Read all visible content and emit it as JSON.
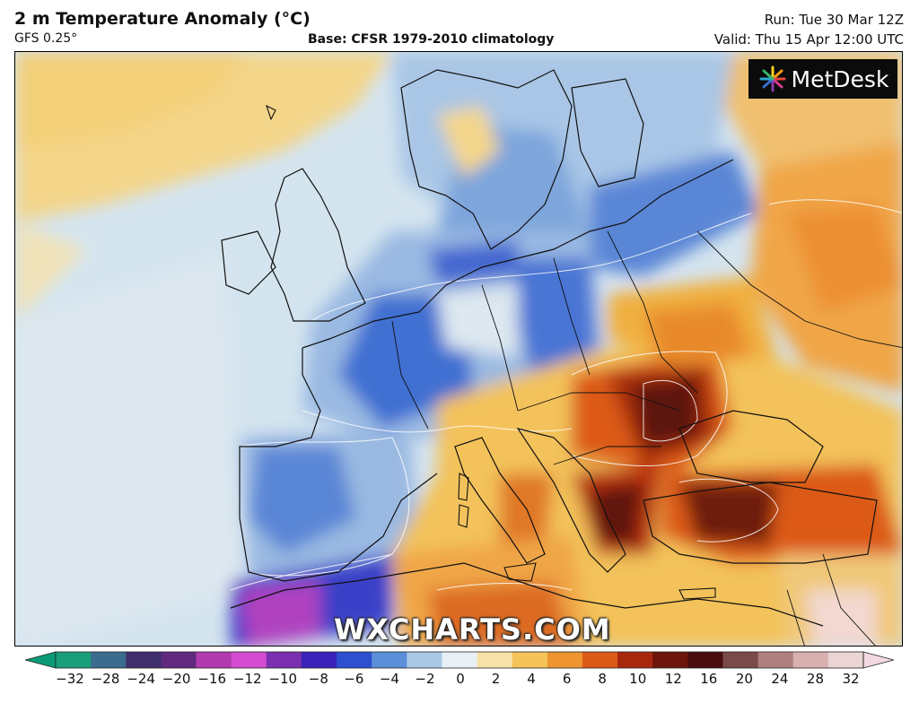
{
  "header": {
    "title": "2 m Temperature Anomaly (°C)",
    "model": "GFS 0.25°",
    "base": "Base: CFSR 1979-2010 climatology",
    "run": "Run: Tue 30 Mar 12Z",
    "valid": "Valid: Thu 15 Apr 12:00 UTC"
  },
  "logo": {
    "text": "MetDesk",
    "icon": "metdesk-logo-icon"
  },
  "watermark": "WXCHARTS.COM",
  "colorbar": {
    "ticks": [
      "−32",
      "−28",
      "−24",
      "−20",
      "−16",
      "−12",
      "−10",
      "−8",
      "−6",
      "−4",
      "−2",
      "0",
      "2",
      "4",
      "6",
      "8",
      "10",
      "12",
      "16",
      "20",
      "24",
      "28",
      "32"
    ],
    "colors": [
      "#1a9e7a",
      "#3b6b8e",
      "#3e2f6c",
      "#612a7e",
      "#b23bb0",
      "#d24bd0",
      "#7a2fb0",
      "#3a22b8",
      "#2e4fd0",
      "#5b8fd8",
      "#a9c8e6",
      "#e8f0f6",
      "#f6e2a8",
      "#f4c45a",
      "#ee9430",
      "#dc5a18",
      "#a8280e",
      "#6e150c",
      "#4a0e0e",
      "#7a4a4a",
      "#b08080",
      "#d8b0b0",
      "#ecd4d4"
    ],
    "left_arrow_color": "#0a9a78",
    "right_arrow_color": "#f2d8e0"
  },
  "map": {
    "ocean_color": "#d6e6f0",
    "cold_color": "#3a5fd0",
    "warm_color": "#f2a640",
    "hot_color": "#6e150c"
  }
}
